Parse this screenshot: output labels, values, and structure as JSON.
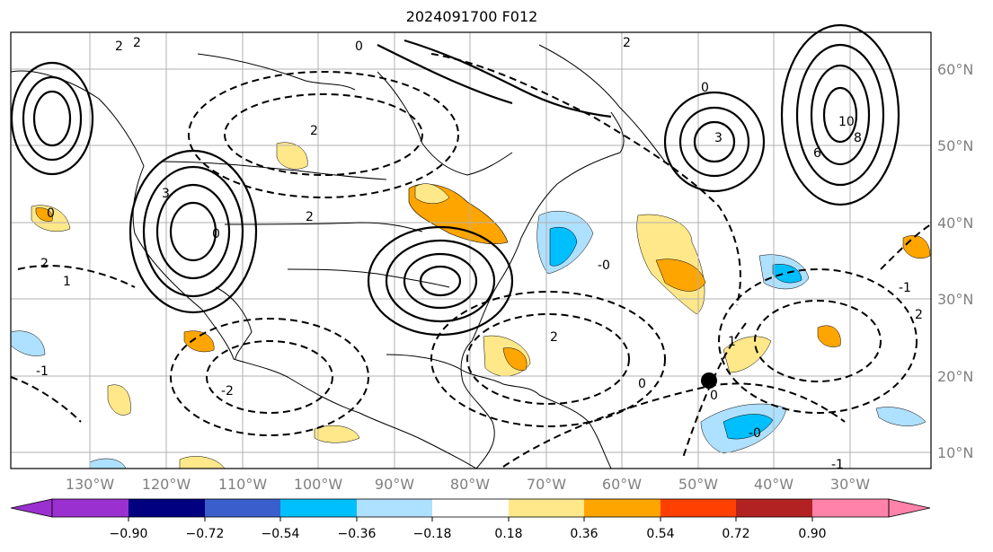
{
  "title": "2024091700 F012",
  "map": {
    "lon_labels": [
      "130°W",
      "120°W",
      "110°W",
      "100°W",
      "90°W",
      "80°W",
      "70°W",
      "60°W",
      "50°W",
      "40°W",
      "30°W"
    ],
    "lat_labels": [
      "60°N",
      "50°N",
      "40°N",
      "30°N",
      "20°N",
      "10°N"
    ],
    "contour_labels": [
      "2",
      "2",
      "0",
      "2",
      "10",
      "8",
      "6",
      "0",
      "3",
      "2",
      "0",
      "1",
      "2",
      "-1",
      "3",
      "0",
      "-2",
      "-0",
      "1",
      "-1",
      "2",
      "0",
      "0",
      "-0",
      "2",
      "-1",
      "2"
    ]
  },
  "colorbar": {
    "tick_labels": [
      "−0.90",
      "−0.72",
      "−0.54",
      "−0.36",
      "−0.18",
      "0.18",
      "0.36",
      "0.54",
      "0.72",
      "0.90"
    ],
    "colors": {
      "under": "#9b30d0",
      "b1": "#9b30d0",
      "b2": "#000080",
      "b3": "#3a5fcd",
      "b4": "#00bfff",
      "b5": "#aee0ff",
      "b6": "#ffffff",
      "b7": "#ffe88a",
      "b8": "#ffa500",
      "b9": "#ff4000",
      "b10": "#b22222",
      "b11": "#ff82ab",
      "over": "#ff82ab"
    }
  }
}
